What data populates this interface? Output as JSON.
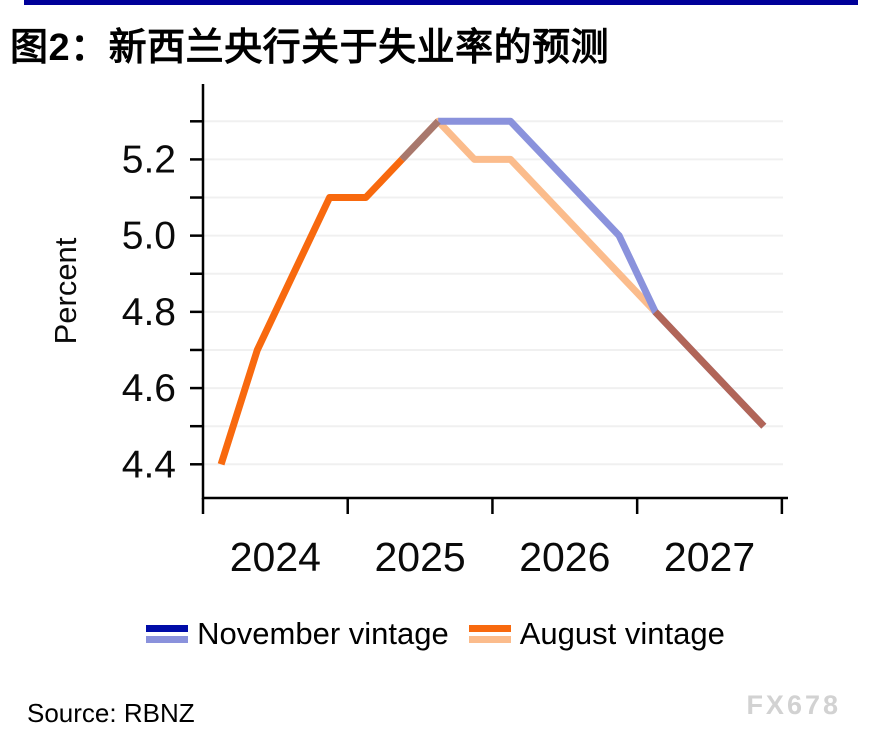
{
  "title": "图2：新西兰央行关于失业率的预测",
  "colors": {
    "top_bar": "#000099",
    "axis": "#000000",
    "gridline": "#F0F0F0",
    "watermark": "#D2D2D2"
  },
  "chart_data": {
    "type": "line",
    "title": "图2：新西兰央行关于失业率的预测",
    "xlabel": "",
    "ylabel": "Percent",
    "x_unit": "quarter",
    "quarters": [
      "2024Q1",
      "2024Q2",
      "2024Q3",
      "2024Q4",
      "2025Q1",
      "2025Q2",
      "2025Q3",
      "2025Q4",
      "2026Q1",
      "2026Q2",
      "2026Q3",
      "2026Q4",
      "2027Q1",
      "2027Q2",
      "2027Q3",
      "2027Q4"
    ],
    "x_tick_years": [
      "2024",
      "2025",
      "2026",
      "2027"
    ],
    "y_ticks": [
      {
        "label": "4.4",
        "value": 4.4
      },
      {
        "label": "4.6",
        "value": 4.6
      },
      {
        "label": "4.8",
        "value": 4.8
      },
      {
        "label": "5.0",
        "value": 5.0
      },
      {
        "label": "5.2",
        "value": 5.2
      }
    ],
    "ylim": [
      4.4,
      5.3
    ],
    "gridline_step": 0.1,
    "grid": true,
    "legend_position": "bottom",
    "series": [
      {
        "name": "November vintage",
        "history_end_index": 6,
        "history_color": "#000CA8",
        "forecast_color": "#8A92DC",
        "values": [
          4.4,
          4.7,
          4.9,
          5.1,
          5.1,
          5.2,
          5.3,
          5.3,
          5.3,
          5.2,
          5.1,
          5.0,
          4.8,
          4.7,
          4.6,
          4.5
        ]
      },
      {
        "name": "August vintage",
        "history_end_index": 5,
        "history_color": "#F8690E",
        "forecast_color": "#FBBC8C",
        "values": [
          4.4,
          4.7,
          4.9,
          5.1,
          5.1,
          5.2,
          5.3,
          5.2,
          5.2,
          5.1,
          5.0,
          4.9,
          4.8,
          4.7,
          4.6,
          4.5
        ]
      }
    ],
    "overlap_colors": {
      "history_with_august_forecast": "#A8786D",
      "merged_forecast_tail": "#B16558"
    },
    "merged_tail_start_index": 12
  },
  "legend": {
    "items": [
      {
        "label": "November vintage",
        "top_color": "#000CA8",
        "bottom_color": "#8A92DC"
      },
      {
        "label": "August vintage",
        "top_color": "#F8690E",
        "bottom_color": "#FBBC8C"
      }
    ]
  },
  "source": "Source: RBNZ",
  "watermark": "FX678"
}
